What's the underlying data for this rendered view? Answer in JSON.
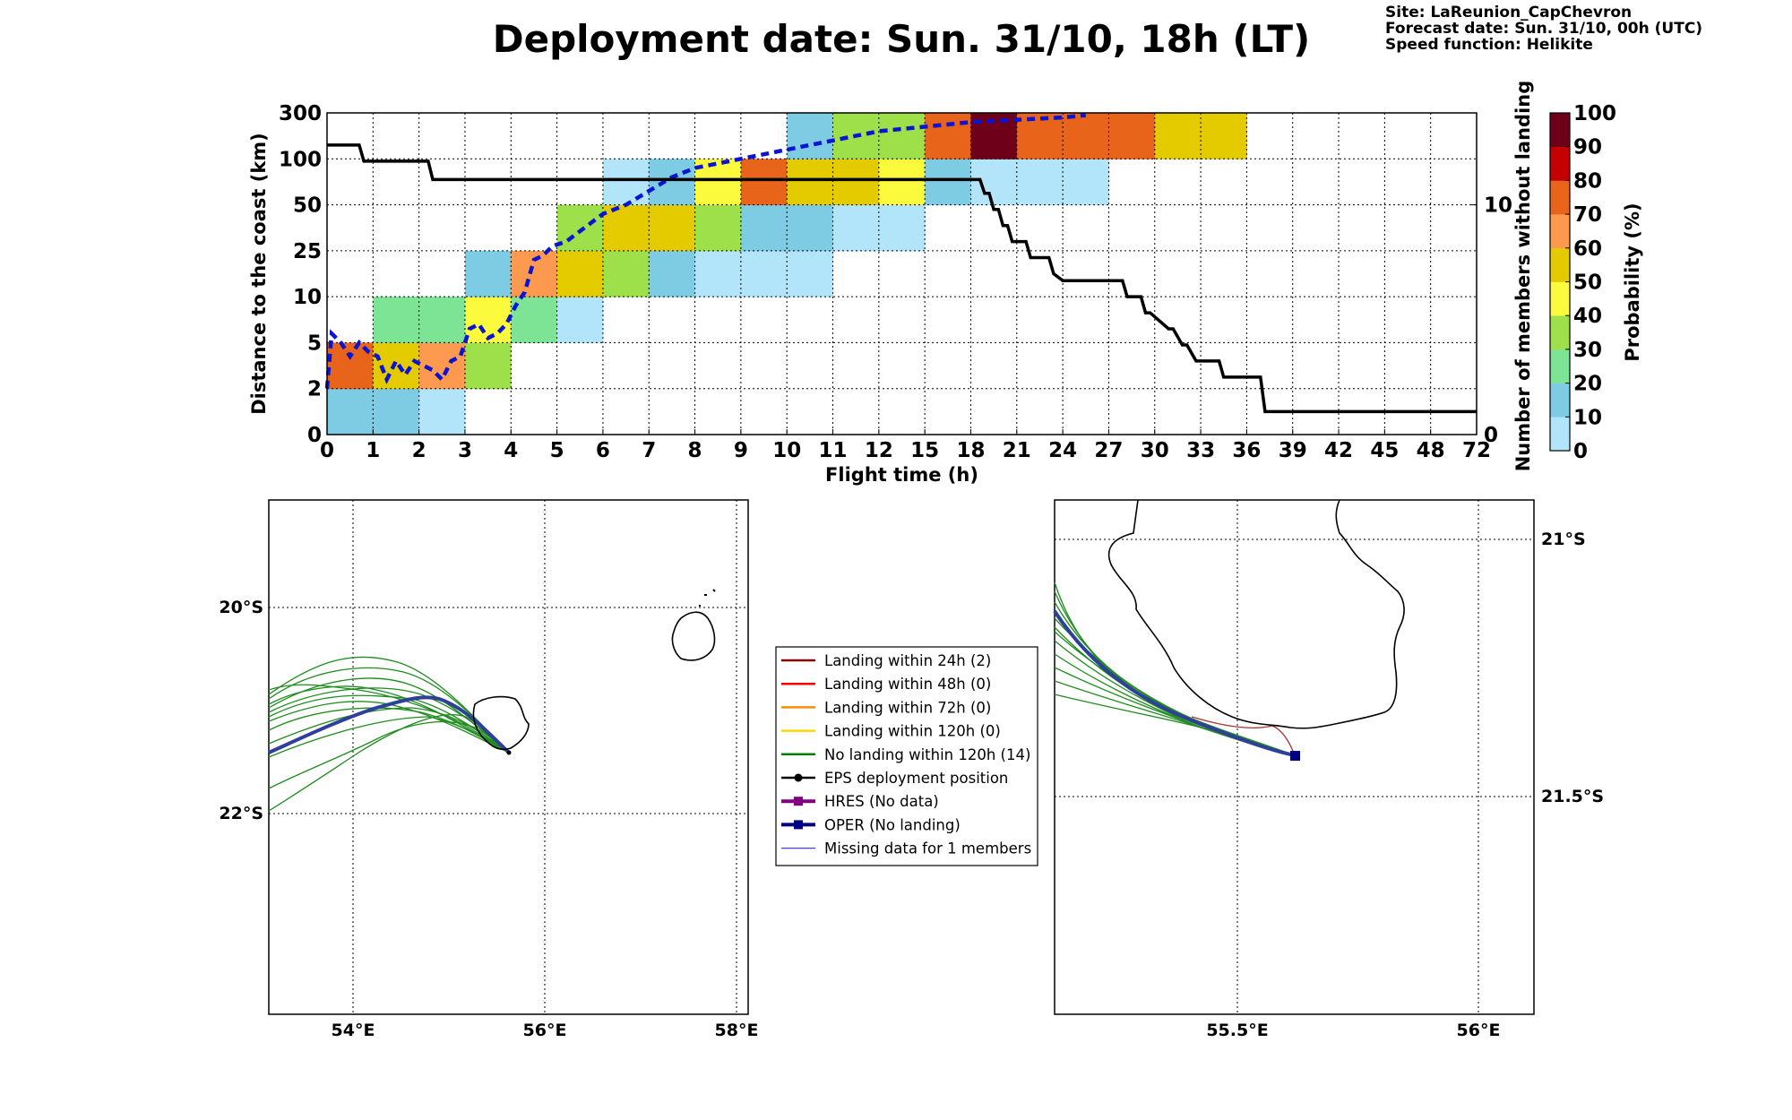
{
  "title": "Deployment date: Sun. 31/10, 18h (LT)",
  "info": {
    "site": "Site: LaReunion_CapChevron",
    "forecast": "Forecast date: Sun. 31/10, 00h (UTC)",
    "speed": "Speed function: Helikite"
  },
  "chart_data": [
    {
      "type": "heatmap",
      "xlabel": "Flight time (h)",
      "ylabel": "Distance to the coast (km)",
      "y2label": "Number of members without landing",
      "x_ticks": [
        "0",
        "1",
        "2",
        "3",
        "4",
        "5",
        "6",
        "7",
        "8",
        "9",
        "10",
        "11",
        "12",
        "15",
        "18",
        "21",
        "24",
        "27",
        "30",
        "33",
        "36",
        "39",
        "42",
        "45",
        "48",
        "72"
      ],
      "y_ticks": [
        "0",
        "2",
        "5",
        "10",
        "25",
        "50",
        "100",
        "300"
      ],
      "y2_ticks": [
        "0",
        "10"
      ],
      "y2_range": [
        0,
        14
      ],
      "colorbar": {
        "label": "Probability (%)",
        "ticks": [
          "0",
          "10",
          "20",
          "30",
          "40",
          "50",
          "60",
          "70",
          "80",
          "90",
          "100"
        ],
        "colors": [
          "#b3e5fa",
          "#7ecbe4",
          "#7de495",
          "#9ee04a",
          "#fbfa3c",
          "#e3cb00",
          "#fd9a50",
          "#e8641b",
          "#c40000",
          "#6e0019"
        ]
      },
      "cells": [
        {
          "x": 0,
          "y": 0,
          "p": 10
        },
        {
          "x": 1,
          "y": 0,
          "p": 10
        },
        {
          "x": 2,
          "y": 0,
          "p": 0
        },
        {
          "x": 0,
          "y": 1,
          "p": 70
        },
        {
          "x": 1,
          "y": 1,
          "p": 50
        },
        {
          "x": 2,
          "y": 1,
          "p": 60
        },
        {
          "x": 3,
          "y": 1,
          "p": 30
        },
        {
          "x": 1,
          "y": 2,
          "p": 20
        },
        {
          "x": 2,
          "y": 2,
          "p": 20
        },
        {
          "x": 3,
          "y": 2,
          "p": 40
        },
        {
          "x": 4,
          "y": 2,
          "p": 20
        },
        {
          "x": 5,
          "y": 2,
          "p": 0
        },
        {
          "x": 3,
          "y": 3,
          "p": 10
        },
        {
          "x": 4,
          "y": 3,
          "p": 60
        },
        {
          "x": 5,
          "y": 3,
          "p": 50
        },
        {
          "x": 6,
          "y": 3,
          "p": 30
        },
        {
          "x": 7,
          "y": 3,
          "p": 10
        },
        {
          "x": 8,
          "y": 3,
          "p": 0
        },
        {
          "x": 9,
          "y": 3,
          "p": 0
        },
        {
          "x": 10,
          "y": 3,
          "p": 0
        },
        {
          "x": 5,
          "y": 4,
          "p": 30
        },
        {
          "x": 6,
          "y": 4,
          "p": 50
        },
        {
          "x": 7,
          "y": 4,
          "p": 50
        },
        {
          "x": 8,
          "y": 4,
          "p": 30
        },
        {
          "x": 9,
          "y": 4,
          "p": 10
        },
        {
          "x": 10,
          "y": 4,
          "p": 10
        },
        {
          "x": 11,
          "y": 4,
          "p": 0
        },
        {
          "x": 12,
          "y": 4,
          "p": 0
        },
        {
          "x": 6,
          "y": 5,
          "p": 0
        },
        {
          "x": 7,
          "y": 5,
          "p": 10
        },
        {
          "x": 8,
          "y": 5,
          "p": 40
        },
        {
          "x": 9,
          "y": 5,
          "p": 70
        },
        {
          "x": 10,
          "y": 5,
          "p": 50
        },
        {
          "x": 11,
          "y": 5,
          "p": 50
        },
        {
          "x": 12,
          "y": 5,
          "p": 40
        },
        {
          "x": 13,
          "y": 5,
          "p": 10
        },
        {
          "x": 14,
          "y": 5,
          "p": 0
        },
        {
          "x": 15,
          "y": 5,
          "p": 0
        },
        {
          "x": 16,
          "y": 5,
          "p": 0
        },
        {
          "x": 10,
          "y": 6,
          "p": 10
        },
        {
          "x": 11,
          "y": 6,
          "p": 30
        },
        {
          "x": 12,
          "y": 6,
          "p": 30
        },
        {
          "x": 13,
          "y": 6,
          "p": 70
        },
        {
          "x": 14,
          "y": 6,
          "p": 90
        },
        {
          "x": 15,
          "y": 6,
          "p": 70
        },
        {
          "x": 16,
          "y": 6,
          "p": 70
        },
        {
          "x": 17,
          "y": 6,
          "p": 70
        },
        {
          "x": 18,
          "y": 6,
          "p": 50
        },
        {
          "x": 19,
          "y": 6,
          "p": 50
        }
      ],
      "median_distance": {
        "x": [
          0,
          0.1,
          0.3,
          0.5,
          0.7,
          0.9,
          1.1,
          1.3,
          1.5,
          1.7,
          1.9,
          2.1,
          2.3,
          2.5,
          2.7,
          2.9,
          3.1,
          3.3,
          3.5,
          3.7,
          3.9,
          4.1,
          4.3,
          4.5,
          4.7,
          4.9,
          5.2,
          5.6,
          6,
          6.5,
          7,
          7.5,
          8,
          8.5,
          9,
          9.5,
          10,
          10.5,
          11,
          11.5,
          12,
          13,
          14,
          15,
          16,
          16.5
        ],
        "y": [
          1,
          2.2,
          2.0,
          1.7,
          2.0,
          1.8,
          1.7,
          1.2,
          1.6,
          1.3,
          1.6,
          1.5,
          1.4,
          1.2,
          1.6,
          1.7,
          2.3,
          2.4,
          2.1,
          2.2,
          2.4,
          2.8,
          3.1,
          3.8,
          3.9,
          4.1,
          4.2,
          4.5,
          4.8,
          5.0,
          5.3,
          5.6,
          5.8,
          5.9,
          6.0,
          6.1,
          6.2,
          6.3,
          6.4,
          6.5,
          6.6,
          6.7,
          6.8,
          6.85,
          6.9,
          6.95
        ]
      },
      "members_without_landing": {
        "x": [
          0,
          0.7,
          0.8,
          2.2,
          2.3,
          14.2,
          14.3,
          14.4,
          14.5,
          14.6,
          14.7,
          14.8,
          14.9,
          15.2,
          15.3,
          15.7,
          15.8,
          16,
          17.3,
          17.4,
          17.7,
          17.8,
          17.9,
          18.3,
          18.4,
          18.6,
          18.7,
          18.9,
          19.4,
          19.5,
          20.3,
          20.4,
          25
        ],
        "y": [
          12.6,
          12.6,
          11.9,
          11.9,
          11.1,
          11.1,
          10.5,
          10.5,
          9.8,
          9.8,
          9.1,
          9.1,
          8.4,
          8.4,
          7.7,
          7.7,
          7.0,
          6.7,
          6.7,
          6.0,
          6.0,
          5.3,
          5.3,
          4.6,
          4.6,
          3.9,
          3.9,
          3.2,
          3.2,
          2.5,
          2.5,
          1.0,
          1.0
        ]
      }
    },
    {
      "type": "map",
      "x_ticks": [
        "54°E",
        "56°E",
        "58°E"
      ],
      "y_ticks": [
        "20°S",
        "22°S"
      ]
    },
    {
      "type": "map",
      "x_ticks": [
        "55.5°E",
        "56°E"
      ],
      "y_ticks": [
        "21°S",
        "21.5°S"
      ]
    }
  ],
  "legend": {
    "items": [
      {
        "label": "Landing within 24h (2)",
        "color": "#8b0000",
        "style": "line"
      },
      {
        "label": "Landing within 48h (0)",
        "color": "#ff0000",
        "style": "line"
      },
      {
        "label": "Landing within 72h (0)",
        "color": "#ff8c00",
        "style": "line"
      },
      {
        "label": "Landing within 120h (0)",
        "color": "#ffd700",
        "style": "line"
      },
      {
        "label": "No landing within 120h (14)",
        "color": "#008000",
        "style": "line"
      },
      {
        "label": "EPS deployment position",
        "color": "#000000",
        "style": "dot"
      },
      {
        "label": "HRES (No data)",
        "color": "#800080",
        "style": "square"
      },
      {
        "label": "OPER (No landing)",
        "color": "#000080",
        "style": "square"
      },
      {
        "label": "Missing data for 1 members",
        "color": "#4040ff",
        "style": "thin"
      }
    ]
  }
}
